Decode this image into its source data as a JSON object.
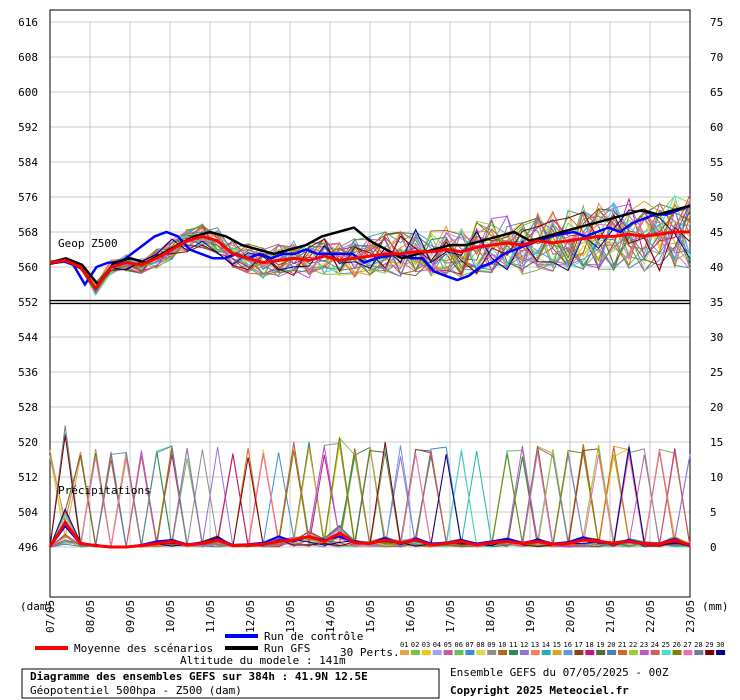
{
  "chart_data": {
    "type": "line",
    "left_axis": {
      "unit": "(dam)",
      "ticks": [
        "616",
        "608",
        "600",
        "592",
        "584",
        "576",
        "568",
        "560",
        "552",
        "544",
        "536",
        "528",
        "520",
        "512",
        "504",
        "496"
      ],
      "range": [
        496,
        616
      ]
    },
    "right_axis": {
      "unit": "(mm)",
      "ticks": [
        "75",
        "70",
        "65",
        "60",
        "55",
        "50",
        "45",
        "40",
        "35",
        "30",
        "25",
        "20",
        "15",
        "10",
        "5",
        "0"
      ],
      "range": [
        0,
        75
      ]
    },
    "x_ticks": [
      "07/05",
      "08/05",
      "09/05",
      "10/05",
      "11/05",
      "12/05",
      "13/05",
      "14/05",
      "15/05",
      "16/05",
      "17/05",
      "18/05",
      "19/05",
      "20/05",
      "21/05",
      "22/05",
      "23/05"
    ],
    "reference_line_dam": 552,
    "annotations": {
      "geop": "Geop Z500",
      "precip": "Précipitations"
    },
    "geop_mean": [
      561,
      561.5,
      560,
      555,
      560,
      561,
      560.5,
      562,
      564,
      566,
      567,
      566,
      563,
      562,
      561,
      561.5,
      562,
      561.5,
      562.5,
      561.5,
      562,
      562.5,
      563,
      563,
      563.5,
      563.5,
      564,
      563.5,
      564.5,
      565,
      565.5,
      565,
      566,
      565.5,
      566,
      566.5,
      567,
      567,
      567.5,
      567,
      567.5,
      568,
      568
    ],
    "geop_control": [
      561,
      561.5,
      560.5,
      556,
      560,
      561,
      561,
      563,
      565,
      567,
      568,
      567,
      564,
      563,
      562,
      562,
      563,
      562,
      563,
      562,
      563,
      563,
      564,
      563,
      563,
      563,
      563,
      561,
      562,
      562.5,
      563,
      562,
      562,
      559,
      558,
      557,
      558,
      560,
      561,
      563,
      564,
      565,
      566,
      567,
      567.5,
      568,
      567,
      568,
      569,
      568,
      570,
      571,
      572,
      572,
      573,
      574
    ],
    "geop_gfs": [
      561,
      562,
      560.5,
      556,
      561,
      562,
      561,
      563,
      565,
      567,
      568,
      567,
      565,
      564,
      563,
      564,
      565,
      567,
      568,
      569,
      566,
      564,
      562,
      563,
      564,
      565,
      565,
      566,
      567,
      568,
      566,
      567,
      568,
      569,
      570,
      571,
      572,
      573,
      572,
      573,
      574
    ],
    "precip_mean": [
      0,
      3.5,
      0.5,
      0.2,
      0,
      0,
      0.2,
      0.5,
      0.8,
      0.3,
      0.5,
      1,
      0.2,
      0.3,
      0.4,
      0.8,
      1,
      1.5,
      0.8,
      2,
      0.6,
      0.5,
      1,
      0.6,
      1,
      0.3,
      0.5,
      0.8,
      0.3,
      0.6,
      0.8,
      0.5,
      0.8,
      0.4,
      0.5,
      1,
      0.8,
      0.5,
      0.8,
      0.5,
      0.4,
      1,
      0.3
    ],
    "precip_control": [
      0,
      3,
      0.4,
      0.3,
      0,
      0,
      0.3,
      0.8,
      1,
      0.4,
      0.6,
      1.2,
      0.3,
      0.4,
      0.6,
      1.5,
      0.8,
      1.5,
      1,
      1.5,
      0.7,
      0.5,
      1.3,
      0.4,
      1.2,
      0.5,
      0.6,
      1,
      0.5,
      0.8,
      1.2,
      0.6,
      1,
      0.5,
      0.7,
      1.4,
      0.6,
      0.5,
      1,
      0.5,
      0.5,
      1.2,
      0.2
    ]
  },
  "legend": {
    "mean_label": "Moyenne des scénarios",
    "control_label": "Run de contrôle",
    "gfs_label": "Run GFS",
    "perts_label": "30 Perts.",
    "altitude": "Altitude du modele : 141m",
    "member_ids": [
      "01",
      "02",
      "03",
      "04",
      "05",
      "06",
      "07",
      "08",
      "09",
      "10",
      "11",
      "12",
      "13",
      "14",
      "15",
      "16",
      "17",
      "18",
      "19",
      "20",
      "21",
      "22",
      "23",
      "24",
      "25",
      "26",
      "27",
      "28",
      "29",
      "30"
    ],
    "member_colors": [
      "#e8a13c",
      "#7ac143",
      "#f0c419",
      "#a0a0ff",
      "#c85a9e",
      "#6bbf4f",
      "#3a8ed8",
      "#d9d94a",
      "#8c8c8c",
      "#b5651d",
      "#2e8b57",
      "#9370db",
      "#ff7f50",
      "#20b2aa",
      "#daa520",
      "#6495ed",
      "#8b4513",
      "#c71585",
      "#556b2f",
      "#4682b4",
      "#d2691e",
      "#9acd32",
      "#ba55d3",
      "#cd5c5c",
      "#40e0d0",
      "#808000",
      "#ff69b4",
      "#708090",
      "#800000",
      "#00008b"
    ]
  },
  "footer": {
    "title": "Diagramme des ensembles GEFS sur 384h : 41.9N 12.5E",
    "subtitle": "Géopotentiel 500hpa - Z500 (dam)",
    "ensemble": "Ensemble GEFS du 07/05/2025 - 00Z",
    "copyright": "Copyright 2025 Meteociel.fr"
  },
  "colors": {
    "mean": "#ff0000",
    "control": "#0000ff",
    "gfs": "#000000",
    "grid": "#c8c8c8"
  }
}
